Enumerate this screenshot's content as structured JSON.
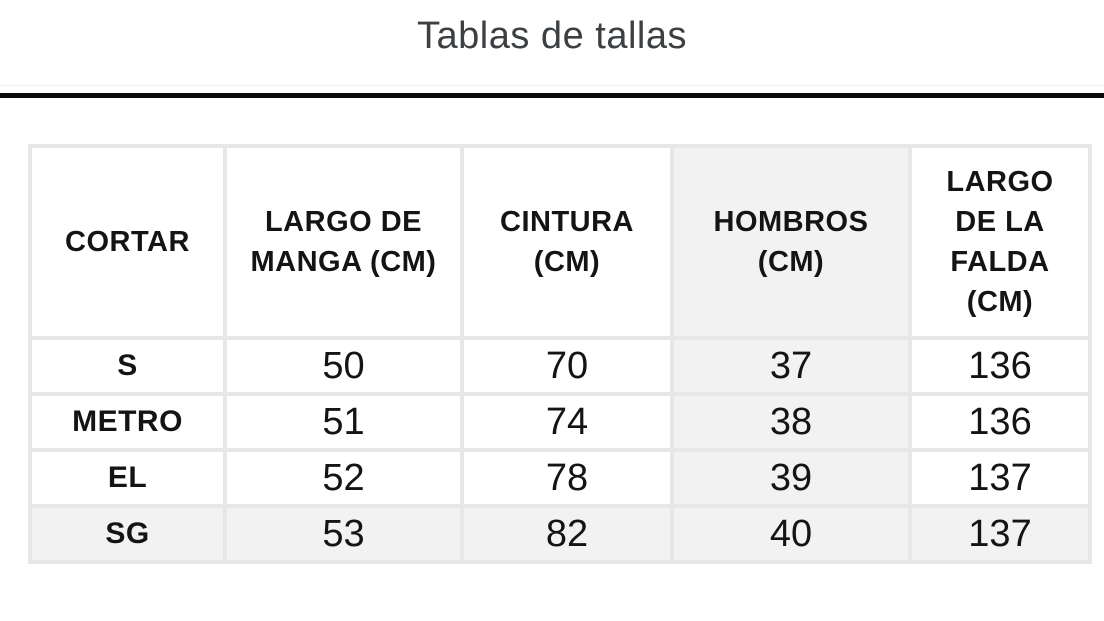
{
  "header": {
    "title": "Tablas de tallas"
  },
  "size_chart": {
    "columns": [
      "CORTAR",
      "LARGO DE MANGA (CM)",
      "CINTURA (CM)",
      "HOMBROS (CM)",
      "LARGO DE LA FALDA (CM)"
    ],
    "rows": [
      {
        "label": "S",
        "values": [
          "50",
          "70",
          "37",
          "136"
        ]
      },
      {
        "label": "METRO",
        "values": [
          "51",
          "74",
          "38",
          "136"
        ]
      },
      {
        "label": "EL",
        "values": [
          "52",
          "78",
          "39",
          "137"
        ]
      },
      {
        "label": "SG",
        "values": [
          "53",
          "82",
          "40",
          "137"
        ]
      }
    ],
    "highlighted_column": "HOMBROS (CM)",
    "highlighted_row": "SG"
  },
  "colors": {
    "highlight_bg": "#f2f2f2",
    "cell_border": "#e7e7e7",
    "black_divider": "#0b0b0b",
    "title_text": "#3c4043",
    "table_text": "#141414"
  }
}
